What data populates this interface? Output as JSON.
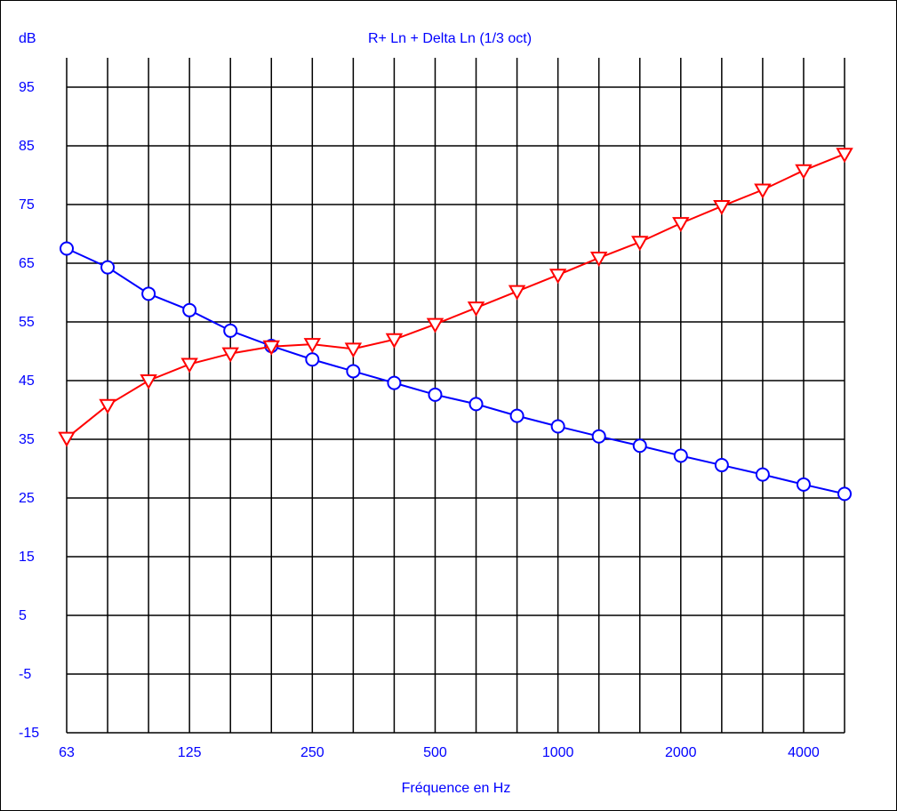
{
  "chart_data": {
    "type": "line",
    "title": "R+ Ln + Delta Ln (1/3 oct)",
    "ylabel": "dB",
    "xlabel": "Fréquence en Hz",
    "x_scale": "log (1/3 octave bands)",
    "x_bands": [
      "63",
      "80",
      "100",
      "125",
      "160",
      "200",
      "250",
      "315",
      "400",
      "500",
      "630",
      "800",
      "1000",
      "1250",
      "1600",
      "2000",
      "2500",
      "3150",
      "4000",
      "5000"
    ],
    "x_tick_labels": [
      "63",
      "125",
      "250",
      "500",
      "1000",
      "2000",
      "4000"
    ],
    "y_tick_labels": [
      "95",
      "85",
      "75",
      "65",
      "55",
      "45",
      "35",
      "25",
      "15",
      "5",
      "-5",
      "-15"
    ],
    "ylim": [
      -15,
      100
    ],
    "grid": true,
    "series": [
      {
        "color": "#0000ff",
        "marker": "circle",
        "values": [
          67.5,
          64.3,
          59.8,
          57.0,
          53.5,
          50.9,
          48.6,
          46.6,
          44.6,
          42.6,
          41.0,
          39.0,
          37.2,
          35.5,
          33.9,
          32.2,
          30.6,
          29.0,
          27.3,
          25.7
        ]
      },
      {
        "color": "#ff0000",
        "marker": "triangle-down",
        "values": [
          35.2,
          40.8,
          45.0,
          47.8,
          49.6,
          50.8,
          51.2,
          50.4,
          52.0,
          54.6,
          57.4,
          60.2,
          63.0,
          65.9,
          68.6,
          71.8,
          74.7,
          77.5,
          80.8,
          83.6
        ]
      }
    ]
  }
}
